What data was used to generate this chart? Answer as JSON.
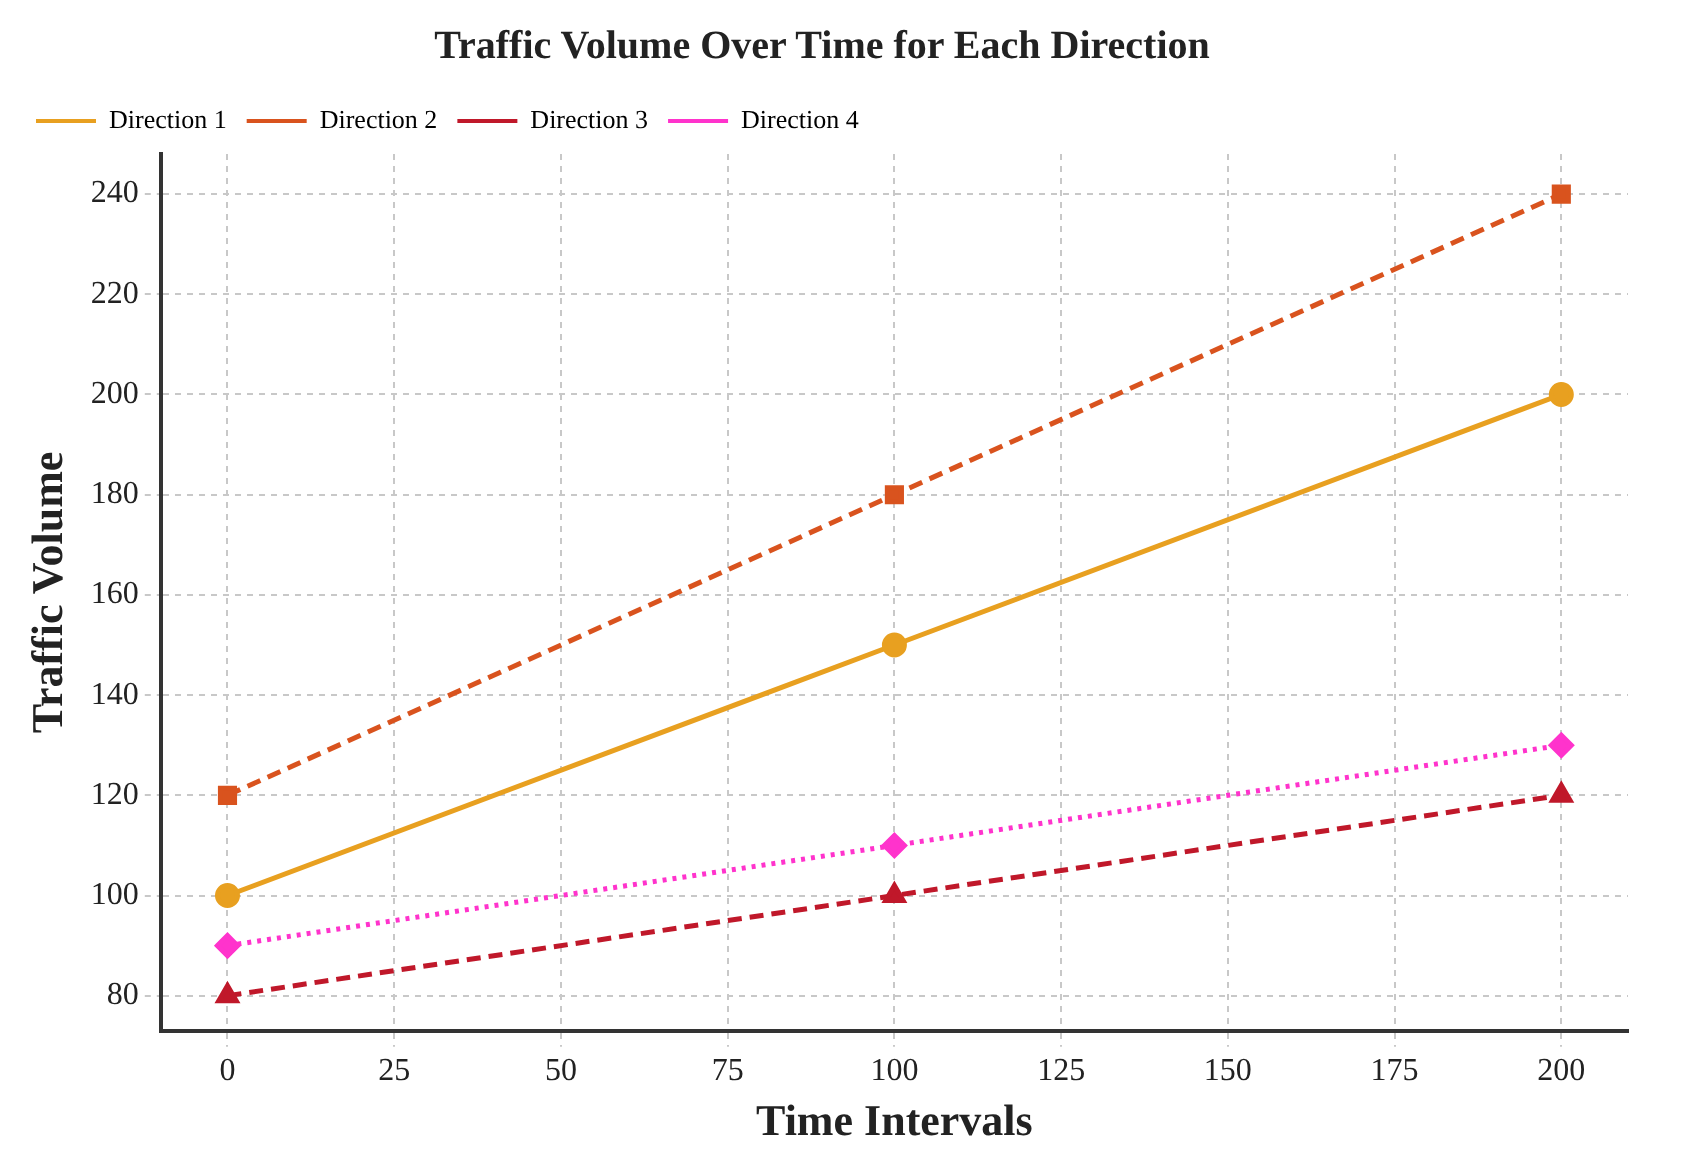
{
  "chart_data": {
    "type": "line",
    "title": "Traffic Volume Over Time for Each Direction",
    "xlabel": "Time Intervals",
    "ylabel": "Traffic Volume",
    "x": [
      0,
      100,
      200
    ],
    "series": [
      {
        "name": "Direction 1",
        "color": "#e8a020",
        "values": [
          100,
          150,
          200
        ],
        "marker": "circle",
        "line_style": "solid"
      },
      {
        "name": "Direction 2",
        "color": "#d9531e",
        "values": [
          120,
          180,
          240
        ],
        "marker": "square",
        "line_style": "dashed"
      },
      {
        "name": "Direction 3",
        "color": "#c0182a",
        "values": [
          80,
          100,
          120
        ],
        "marker": "triangle",
        "line_style": "dashed"
      },
      {
        "name": "Direction 4",
        "color": "#ff33cc",
        "values": [
          90,
          110,
          130
        ],
        "marker": "diamond",
        "line_style": "dotted"
      }
    ],
    "xlim": [
      -10,
      210
    ],
    "xticks": [
      0,
      25,
      50,
      75,
      100,
      125,
      150,
      175,
      200
    ],
    "ylim": [
      73,
      248
    ],
    "yticks": [
      80,
      100,
      120,
      140,
      160,
      180,
      200,
      220,
      240
    ],
    "grid": true,
    "legend": "top left"
  }
}
